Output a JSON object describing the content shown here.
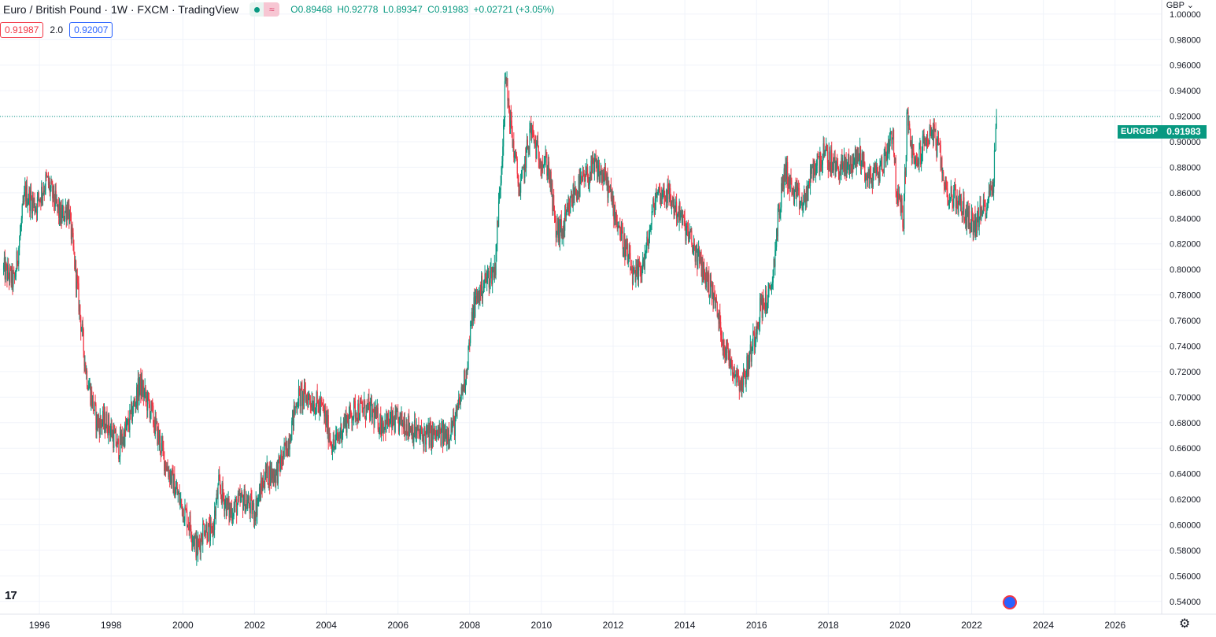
{
  "header": {
    "title": "Euro / British Pound · 1W · FXCM · TradingView",
    "ohlc": {
      "open": "O0.89468",
      "high": "H0.92778",
      "low": "L0.89347",
      "close": "C0.91983",
      "change": "+0.02721 (+3.05%)"
    },
    "bid": "0.91987",
    "spread": "2.0",
    "ask": "0.92007",
    "currency": "GBP ⌄",
    "pill_wave": "≈"
  },
  "price_badge": {
    "symbol": "EURGBP",
    "price": "0.91983"
  },
  "logo": "17",
  "settings_icon": "⚙",
  "colors": {
    "up": "#089981",
    "down": "#f23645",
    "grid": "#f0f3fa",
    "axis_text": "#131722"
  },
  "chart_data": {
    "type": "candlestick",
    "x_label_years": [
      "1996",
      "1998",
      "2000",
      "2002",
      "2004",
      "2006",
      "2008",
      "2010",
      "2012",
      "2014",
      "2016",
      "2018",
      "2020",
      "2022",
      "2024",
      "2026"
    ],
    "y_ticks": [
      "1.00000",
      "0.98000",
      "0.96000",
      "0.94000",
      "0.92000",
      "0.90000",
      "0.88000",
      "0.86000",
      "0.84000",
      "0.82000",
      "0.80000",
      "0.78000",
      "0.76000",
      "0.74000",
      "0.72000",
      "0.70000",
      "0.68000",
      "0.66000",
      "0.64000",
      "0.62000",
      "0.60000",
      "0.58000",
      "0.56000",
      "0.54000"
    ],
    "y_range": [
      0.53,
      1.011
    ],
    "x_range": [
      1994.9,
      2027.3
    ],
    "last_price": 0.91983,
    "grid": true,
    "path": [
      [
        1995.0,
        0.8
      ],
      [
        1995.3,
        0.79
      ],
      [
        1995.6,
        0.86
      ],
      [
        1995.9,
        0.85
      ],
      [
        1996.2,
        0.87
      ],
      [
        1996.6,
        0.84
      ],
      [
        1996.8,
        0.85
      ],
      [
        1997.0,
        0.8
      ],
      [
        1997.3,
        0.72
      ],
      [
        1997.6,
        0.68
      ],
      [
        1997.9,
        0.68
      ],
      [
        1998.2,
        0.66
      ],
      [
        1998.5,
        0.68
      ],
      [
        1998.8,
        0.71
      ],
      [
        1999.1,
        0.69
      ],
      [
        1999.5,
        0.65
      ],
      [
        1999.9,
        0.62
      ],
      [
        2000.2,
        0.6
      ],
      [
        2000.4,
        0.58
      ],
      [
        2000.6,
        0.6
      ],
      [
        2000.8,
        0.59
      ],
      [
        2001.0,
        0.63
      ],
      [
        2001.3,
        0.61
      ],
      [
        2001.7,
        0.62
      ],
      [
        2002.0,
        0.61
      ],
      [
        2002.3,
        0.64
      ],
      [
        2002.6,
        0.64
      ],
      [
        2002.9,
        0.66
      ],
      [
        2003.2,
        0.7
      ],
      [
        2003.5,
        0.7
      ],
      [
        2003.9,
        0.69
      ],
      [
        2004.2,
        0.66
      ],
      [
        2004.5,
        0.68
      ],
      [
        2004.8,
        0.69
      ],
      [
        2005.2,
        0.69
      ],
      [
        2005.5,
        0.68
      ],
      [
        2005.9,
        0.68
      ],
      [
        2006.2,
        0.68
      ],
      [
        2006.6,
        0.67
      ],
      [
        2006.9,
        0.67
      ],
      [
        2007.3,
        0.67
      ],
      [
        2007.6,
        0.68
      ],
      [
        2007.9,
        0.72
      ],
      [
        2008.1,
        0.77
      ],
      [
        2008.4,
        0.79
      ],
      [
        2008.7,
        0.8
      ],
      [
        2008.9,
        0.89
      ],
      [
        2009.0,
        0.95
      ],
      [
        2009.2,
        0.9
      ],
      [
        2009.4,
        0.86
      ],
      [
        2009.7,
        0.91
      ],
      [
        2009.9,
        0.89
      ],
      [
        2010.2,
        0.88
      ],
      [
        2010.4,
        0.83
      ],
      [
        2010.6,
        0.83
      ],
      [
        2010.9,
        0.86
      ],
      [
        2011.2,
        0.87
      ],
      [
        2011.5,
        0.88
      ],
      [
        2011.8,
        0.87
      ],
      [
        2012.1,
        0.84
      ],
      [
        2012.4,
        0.81
      ],
      [
        2012.6,
        0.79
      ],
      [
        2012.9,
        0.81
      ],
      [
        2013.2,
        0.86
      ],
      [
        2013.5,
        0.86
      ],
      [
        2013.9,
        0.84
      ],
      [
        2014.2,
        0.82
      ],
      [
        2014.5,
        0.8
      ],
      [
        2014.8,
        0.78
      ],
      [
        2015.1,
        0.74
      ],
      [
        2015.4,
        0.72
      ],
      [
        2015.6,
        0.71
      ],
      [
        2015.8,
        0.73
      ],
      [
        2016.1,
        0.77
      ],
      [
        2016.4,
        0.78
      ],
      [
        2016.6,
        0.84
      ],
      [
        2016.8,
        0.88
      ],
      [
        2017.0,
        0.86
      ],
      [
        2017.3,
        0.85
      ],
      [
        2017.6,
        0.88
      ],
      [
        2017.9,
        0.89
      ],
      [
        2018.2,
        0.88
      ],
      [
        2018.5,
        0.88
      ],
      [
        2018.9,
        0.89
      ],
      [
        2019.1,
        0.87
      ],
      [
        2019.5,
        0.88
      ],
      [
        2019.8,
        0.91
      ],
      [
        2019.9,
        0.86
      ],
      [
        2020.1,
        0.84
      ],
      [
        2020.2,
        0.92
      ],
      [
        2020.4,
        0.88
      ],
      [
        2020.7,
        0.9
      ],
      [
        2020.9,
        0.91
      ],
      [
        2021.1,
        0.89
      ],
      [
        2021.3,
        0.86
      ],
      [
        2021.6,
        0.855
      ],
      [
        2021.9,
        0.84
      ],
      [
        2022.1,
        0.835
      ],
      [
        2022.3,
        0.845
      ],
      [
        2022.5,
        0.86
      ],
      [
        2022.6,
        0.87
      ],
      [
        2022.7,
        0.92
      ]
    ]
  }
}
